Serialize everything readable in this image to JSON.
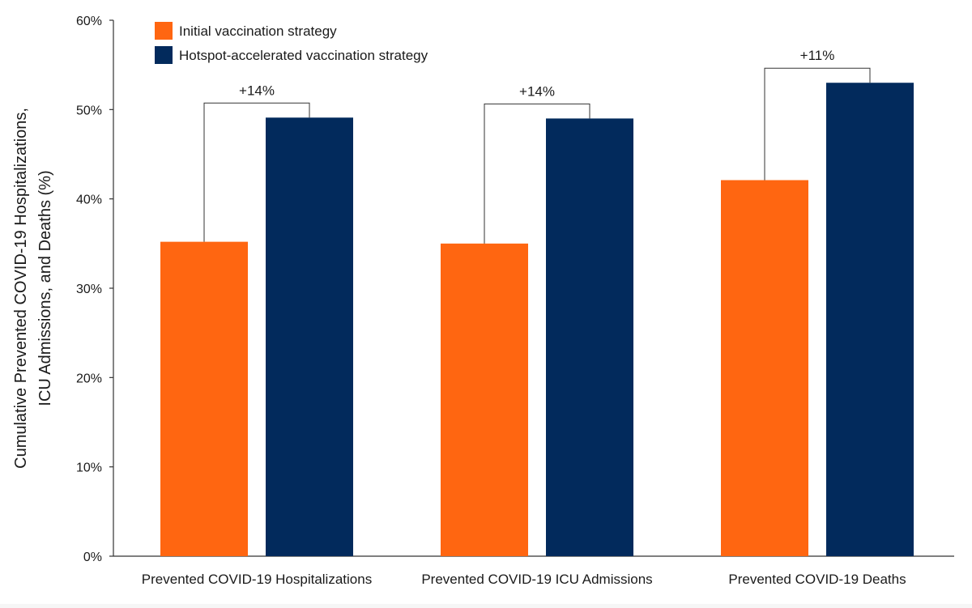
{
  "chart_data": {
    "type": "bar",
    "categories": [
      "Prevented COVID-19 Hospitalizations",
      "Prevented COVID-19 ICU Admissions",
      "Prevented COVID-19 Deaths"
    ],
    "series": [
      {
        "name": "Initial vaccination strategy",
        "color": "#ff6611",
        "values": [
          35.2,
          35.0,
          42.1
        ]
      },
      {
        "name": "Hotspot-accelerated vaccination strategy",
        "color": "#022a5c",
        "values": [
          49.1,
          49.0,
          53.0
        ]
      }
    ],
    "differences": [
      "+14%",
      "+14%",
      "+11%"
    ],
    "ylabel_lines": [
      "Cumulative Prevented COVID-19 Hospitalizations,",
      "ICU Admissions, and Deaths (%)"
    ],
    "yticks": [
      "0%",
      "10%",
      "20%",
      "30%",
      "40%",
      "50%",
      "60%"
    ],
    "ylim": [
      0,
      60
    ],
    "grid": false,
    "legend_position": "top-left"
  }
}
